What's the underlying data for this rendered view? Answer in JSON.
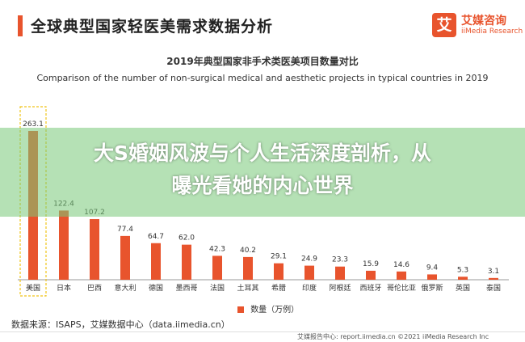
{
  "header": {
    "title": "全球典型国家轻医美需求数据分析"
  },
  "logo": {
    "mark": "艾",
    "name_cn": "艾媒咨询",
    "name_en": "iiMedia Research"
  },
  "overlay": {
    "line1": "大S婚姻风波与个人生活深度剖析，从",
    "line2": "曝光看她的内心世界"
  },
  "source": "数据来源：ISAPS，艾媒数据中心（data.iimedia.cn）",
  "footer": "艾媒报告中心: report.iimedia.cn ©2021 iiMedia Research Inc",
  "colors": {
    "bar": "#e8542d",
    "highlight_box": "#f0c419",
    "accent": "#e8542d"
  },
  "chart_data": {
    "type": "bar",
    "title": "2019年典型国家非手术类医美项目数量对比",
    "subtitle": "Comparison of the number of non-surgical medical and aesthetic projects in typical countries in 2019",
    "categories": [
      "美国",
      "日本",
      "巴西",
      "意大利",
      "德国",
      "墨西哥",
      "法国",
      "土耳其",
      "希腊",
      "印度",
      "阿根廷",
      "西班牙",
      "哥伦比亚",
      "俄罗斯",
      "英国",
      "泰国"
    ],
    "series": [
      {
        "name": "数量（万例）",
        "values": [
          263.1,
          122.4,
          107.2,
          77.4,
          64.7,
          62.0,
          42.3,
          40.2,
          29.1,
          24.9,
          23.3,
          15.9,
          14.6,
          9.4,
          5.3,
          3.1
        ]
      }
    ],
    "value_labels": [
      "263.1",
      "122.4",
      "107.2",
      "77.4",
      "64.7",
      "62.0",
      "42.3",
      "40.2",
      "29.1",
      "24.9",
      "23.3",
      "15.9",
      "14.6",
      "9.4",
      "5.3",
      "3.1"
    ],
    "ylim": [
      0,
      263.1
    ],
    "highlight_category": "美国",
    "legend_position": "bottom",
    "grid": false
  }
}
